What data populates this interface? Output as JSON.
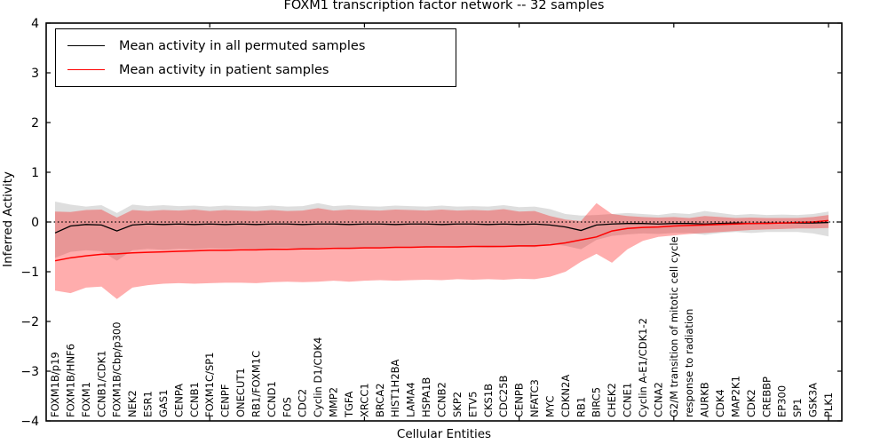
{
  "title": "FOXM1 transcription factor network -- 32 samples",
  "axes": {
    "xlabel": "Cellular Entities",
    "ylabel": "Inferred Activity",
    "yticks": [
      {
        "v": 4,
        "label": "4"
      },
      {
        "v": 3,
        "label": "3"
      },
      {
        "v": 2,
        "label": "2"
      },
      {
        "v": 1,
        "label": "1"
      },
      {
        "v": 0,
        "label": "0"
      },
      {
        "v": -1,
        "label": "−1"
      },
      {
        "v": -2,
        "label": "−2"
      },
      {
        "v": -3,
        "label": "−3"
      },
      {
        "v": -4,
        "label": "−4"
      }
    ],
    "xtick_indices": [
      10,
      20,
      30,
      40,
      50
    ]
  },
  "legend": {
    "entries": [
      {
        "id": "permuted",
        "label": "Mean activity in all permuted samples",
        "color": "#000000"
      },
      {
        "id": "patient",
        "label": "Mean activity in patient samples",
        "color": "#ff0000"
      }
    ]
  },
  "chart_data": {
    "type": "line",
    "title": "FOXM1 transcription factor network -- 32 samples",
    "xlabel": "Cellular Entities",
    "ylabel": "Inferred Activity",
    "ylim": [
      -4,
      4
    ],
    "grid": false,
    "legend_position": "upper left",
    "categories": [
      "FOXM1B/p19",
      "FOXM1B/HNF6",
      "FOXM1",
      "CCNB1/CDK1",
      "FOXM1B/Cbp/p300",
      "NEK2",
      "ESR1",
      "GAS1",
      "CENPA",
      "CCNB1",
      "FOXM1C/SP1",
      "CENPF",
      "ONECUT1",
      "RB1/FOXM1C",
      "CCND1",
      "FOS",
      "CDC2",
      "Cyclin D1/CDK4",
      "MMP2",
      "TGFA",
      "XRCC1",
      "BRCA2",
      "HIST1H2BA",
      "LAMA4",
      "HSPA1B",
      "CCNB2",
      "SKP2",
      "ETV5",
      "CKS1B",
      "CDC25B",
      "CENPB",
      "NFATC3",
      "MYC",
      "CDKN2A",
      "RB1",
      "BIRC5",
      "CHEK2",
      "CCNE1",
      "Cyclin A-E1/CDK1-2",
      "CCNA2",
      "G2/M transition of mitotic cell cycle",
      "response to radiation",
      "AURKB",
      "CDK4",
      "MAP2K1",
      "CDK2",
      "CREBBP",
      "EP300",
      "SP1",
      "GSK3A",
      "PLK1"
    ],
    "series": [
      {
        "id": "permuted",
        "name": "Mean activity in all permuted samples",
        "color": "#000000",
        "values": [
          -0.22,
          -0.08,
          -0.05,
          -0.06,
          -0.18,
          -0.06,
          -0.04,
          -0.05,
          -0.04,
          -0.05,
          -0.04,
          -0.05,
          -0.04,
          -0.05,
          -0.04,
          -0.04,
          -0.05,
          -0.04,
          -0.04,
          -0.05,
          -0.04,
          -0.04,
          -0.05,
          -0.04,
          -0.04,
          -0.05,
          -0.04,
          -0.04,
          -0.05,
          -0.04,
          -0.05,
          -0.04,
          -0.06,
          -0.1,
          -0.17,
          -0.06,
          -0.04,
          -0.03,
          -0.03,
          -0.04,
          -0.03,
          -0.03,
          -0.04,
          -0.03,
          -0.02,
          -0.03,
          -0.02,
          -0.02,
          -0.02,
          -0.02,
          -0.01
        ]
      },
      {
        "id": "patient",
        "name": "Mean activity in patient samples",
        "color": "#ff0000",
        "values": [
          -0.78,
          -0.72,
          -0.68,
          -0.65,
          -0.64,
          -0.62,
          -0.61,
          -0.6,
          -0.59,
          -0.58,
          -0.57,
          -0.57,
          -0.56,
          -0.56,
          -0.55,
          -0.55,
          -0.54,
          -0.54,
          -0.53,
          -0.53,
          -0.52,
          -0.52,
          -0.51,
          -0.51,
          -0.5,
          -0.5,
          -0.5,
          -0.49,
          -0.49,
          -0.49,
          -0.48,
          -0.48,
          -0.46,
          -0.42,
          -0.36,
          -0.3,
          -0.18,
          -0.13,
          -0.11,
          -0.1,
          -0.08,
          -0.07,
          -0.06,
          -0.05,
          -0.04,
          -0.03,
          -0.03,
          -0.02,
          -0.01,
          0.0,
          0.03
        ]
      }
    ],
    "bands": [
      {
        "id": "permuted",
        "name": "permuted samples ± std",
        "color": "#000000",
        "opacity": 0.13,
        "upper": [
          0.41,
          0.35,
          0.31,
          0.34,
          0.18,
          0.35,
          0.32,
          0.34,
          0.32,
          0.33,
          0.31,
          0.33,
          0.32,
          0.31,
          0.33,
          0.31,
          0.32,
          0.38,
          0.32,
          0.34,
          0.32,
          0.31,
          0.33,
          0.32,
          0.31,
          0.33,
          0.31,
          0.32,
          0.31,
          0.34,
          0.3,
          0.31,
          0.26,
          0.16,
          0.13,
          0.14,
          0.16,
          0.18,
          0.16,
          0.14,
          0.18,
          0.16,
          0.22,
          0.18,
          0.14,
          0.16,
          0.14,
          0.15,
          0.14,
          0.16,
          0.21
        ],
        "lower": [
          -0.72,
          -0.6,
          -0.57,
          -0.59,
          -0.78,
          -0.57,
          -0.54,
          -0.56,
          -0.54,
          -0.55,
          -0.53,
          -0.54,
          -0.53,
          -0.54,
          -0.53,
          -0.52,
          -0.54,
          -0.52,
          -0.51,
          -0.53,
          -0.52,
          -0.51,
          -0.52,
          -0.51,
          -0.52,
          -0.51,
          -0.52,
          -0.51,
          -0.52,
          -0.51,
          -0.5,
          -0.51,
          -0.44,
          -0.48,
          -0.55,
          -0.36,
          -0.28,
          -0.25,
          -0.23,
          -0.24,
          -0.22,
          -0.22,
          -0.26,
          -0.22,
          -0.2,
          -0.22,
          -0.2,
          -0.2,
          -0.2,
          -0.23,
          -0.29
        ]
      },
      {
        "id": "patient",
        "name": "patient samples ± std",
        "color": "#ff0000",
        "opacity": 0.32,
        "upper": [
          0.21,
          0.2,
          0.24,
          0.25,
          0.09,
          0.24,
          0.22,
          0.24,
          0.23,
          0.25,
          0.22,
          0.24,
          0.23,
          0.22,
          0.24,
          0.22,
          0.23,
          0.28,
          0.23,
          0.25,
          0.24,
          0.23,
          0.25,
          0.24,
          0.23,
          0.25,
          0.23,
          0.24,
          0.23,
          0.26,
          0.21,
          0.22,
          0.12,
          0.05,
          0.02,
          0.38,
          0.16,
          0.12,
          0.1,
          0.09,
          0.1,
          0.08,
          0.12,
          0.1,
          0.08,
          0.09,
          0.08,
          0.08,
          0.08,
          0.1,
          0.14
        ],
        "lower": [
          -1.38,
          -1.43,
          -1.32,
          -1.3,
          -1.55,
          -1.32,
          -1.27,
          -1.24,
          -1.23,
          -1.24,
          -1.23,
          -1.22,
          -1.22,
          -1.23,
          -1.21,
          -1.2,
          -1.21,
          -1.2,
          -1.18,
          -1.2,
          -1.18,
          -1.17,
          -1.18,
          -1.17,
          -1.16,
          -1.17,
          -1.15,
          -1.16,
          -1.15,
          -1.16,
          -1.14,
          -1.15,
          -1.1,
          -1.0,
          -0.8,
          -0.64,
          -0.82,
          -0.55,
          -0.38,
          -0.3,
          -0.27,
          -0.24,
          -0.22,
          -0.2,
          -0.18,
          -0.16,
          -0.15,
          -0.14,
          -0.13,
          -0.13,
          -0.12
        ]
      }
    ],
    "zero_line": {
      "style": "dotted",
      "color": "#000000",
      "y": 0
    }
  }
}
